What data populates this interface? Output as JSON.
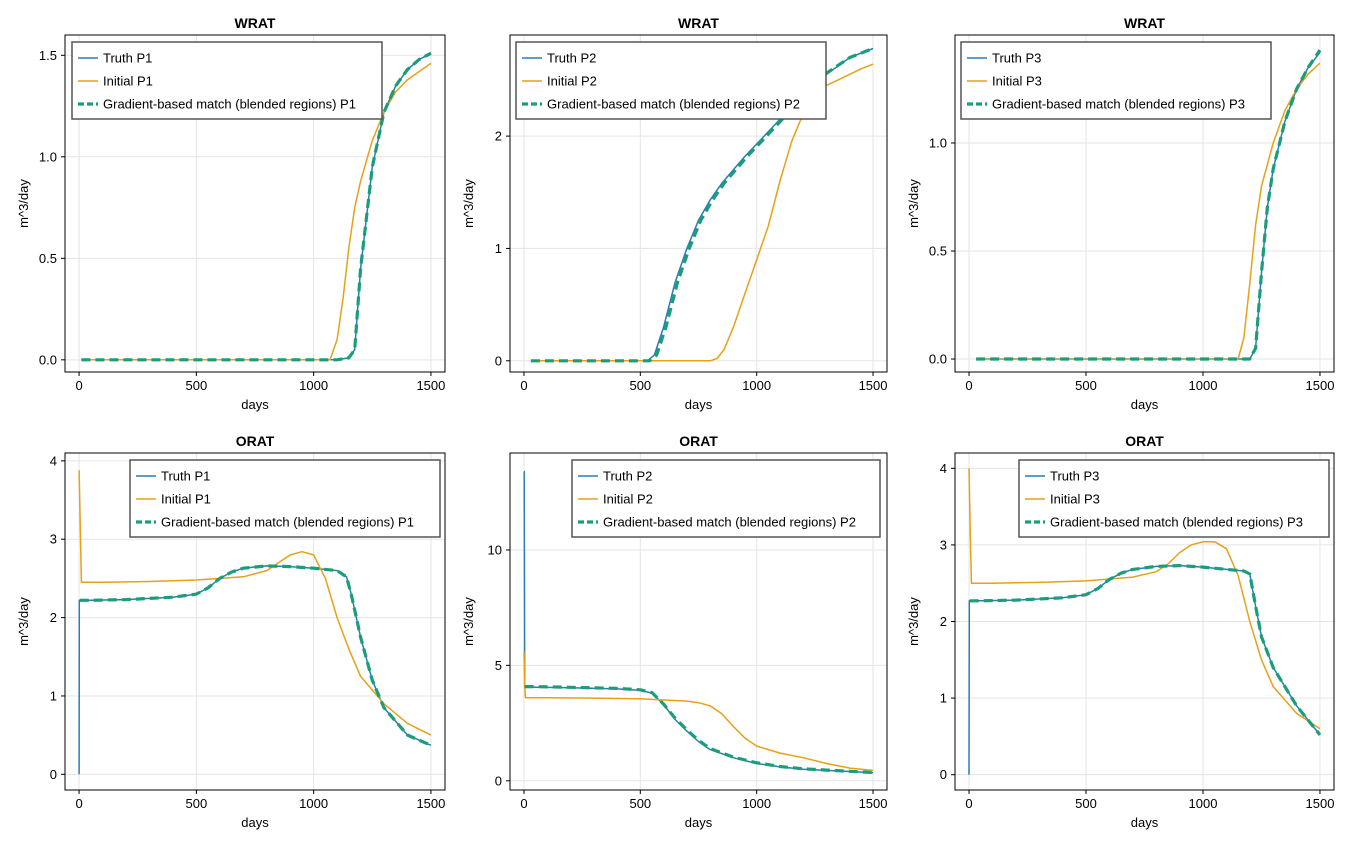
{
  "colors": {
    "truth": "#2b7bba",
    "initial": "#e6a117",
    "match": "#1a9e77",
    "grid": "#e5e5e5",
    "frame": "#000000"
  },
  "chart_data": [
    {
      "type": "line",
      "title": "WRAT",
      "xlabel": "days",
      "ylabel": "m^3/day",
      "xlim": [
        -60,
        1560
      ],
      "ylim": [
        -0.06,
        1.6
      ],
      "xticks": [
        0,
        500,
        1000,
        1500
      ],
      "xtick_labels": [
        "0",
        "500",
        "1000",
        "1500"
      ],
      "yticks": [
        0,
        0.5,
        1.0,
        1.5
      ],
      "ytick_labels": [
        "0.0",
        "0.5",
        "1.0",
        "1.5"
      ],
      "grid": true,
      "legend_position": "top-left",
      "series": [
        {
          "name": "Truth P1",
          "style": "solid",
          "color": "#2b7bba",
          "x": [
            10,
            1100,
            1150,
            1175,
            1200,
            1250,
            1300,
            1350,
            1400,
            1450,
            1500
          ],
          "y": [
            0,
            0,
            0.01,
            0.05,
            0.45,
            0.95,
            1.22,
            1.35,
            1.43,
            1.48,
            1.51
          ]
        },
        {
          "name": "Initial P1",
          "style": "solid",
          "color": "#e6a117",
          "x": [
            10,
            1070,
            1100,
            1125,
            1150,
            1175,
            1200,
            1250,
            1300,
            1350,
            1400,
            1450,
            1500
          ],
          "y": [
            0,
            0,
            0.1,
            0.3,
            0.55,
            0.75,
            0.88,
            1.08,
            1.22,
            1.32,
            1.38,
            1.42,
            1.46
          ]
        },
        {
          "name": "Gradient-based match (blended regions) P1",
          "style": "dashed",
          "color": "#1a9e77",
          "x": [
            10,
            1100,
            1150,
            1175,
            1200,
            1250,
            1300,
            1350,
            1400,
            1450,
            1500
          ],
          "y": [
            0,
            0,
            0.01,
            0.05,
            0.45,
            0.95,
            1.22,
            1.35,
            1.43,
            1.48,
            1.51
          ]
        }
      ]
    },
    {
      "type": "line",
      "title": "WRAT",
      "xlabel": "days",
      "ylabel": "m^3/day",
      "xlim": [
        -60,
        1560
      ],
      "ylim": [
        -0.1,
        2.9
      ],
      "xticks": [
        0,
        500,
        1000,
        1500
      ],
      "xtick_labels": [
        "0",
        "500",
        "1000",
        "1500"
      ],
      "yticks": [
        0,
        1,
        2
      ],
      "ytick_labels": [
        "0",
        "1",
        "2"
      ],
      "grid": true,
      "legend_position": "top-left",
      "series": [
        {
          "name": "Truth P2",
          "style": "solid",
          "color": "#2b7bba",
          "x": [
            30,
            530,
            560,
            600,
            650,
            700,
            750,
            800,
            850,
            900,
            950,
            1000,
            1100,
            1200,
            1300,
            1400,
            1500
          ],
          "y": [
            0,
            0,
            0.05,
            0.3,
            0.7,
            1.0,
            1.25,
            1.43,
            1.58,
            1.7,
            1.82,
            1.93,
            2.15,
            2.35,
            2.55,
            2.7,
            2.78
          ]
        },
        {
          "name": "Initial P2",
          "style": "solid",
          "color": "#e6a117",
          "x": [
            30,
            800,
            830,
            860,
            900,
            950,
            1000,
            1050,
            1100,
            1150,
            1200,
            1250,
            1300,
            1350,
            1400,
            1450,
            1500
          ],
          "y": [
            0,
            0,
            0.02,
            0.1,
            0.3,
            0.6,
            0.9,
            1.2,
            1.6,
            1.95,
            2.2,
            2.35,
            2.45,
            2.5,
            2.55,
            2.6,
            2.64
          ]
        },
        {
          "name": "Gradient-based match (blended regions) P2",
          "style": "dashed",
          "color": "#1a9e77",
          "x": [
            30,
            540,
            570,
            610,
            660,
            710,
            760,
            810,
            860,
            910,
            960,
            1010,
            1110,
            1210,
            1300,
            1400,
            1500
          ],
          "y": [
            0,
            0,
            0.05,
            0.3,
            0.7,
            1.0,
            1.25,
            1.43,
            1.58,
            1.7,
            1.82,
            1.93,
            2.15,
            2.35,
            2.56,
            2.7,
            2.78
          ]
        }
      ]
    },
    {
      "type": "line",
      "title": "WRAT",
      "xlabel": "days",
      "ylabel": "m^3/day",
      "xlim": [
        -60,
        1560
      ],
      "ylim": [
        -0.06,
        1.5
      ],
      "xticks": [
        0,
        500,
        1000,
        1500
      ],
      "xtick_labels": [
        "0",
        "500",
        "1000",
        "1500"
      ],
      "yticks": [
        0,
        0.5,
        1.0
      ],
      "ytick_labels": [
        "0.0",
        "0.5",
        "1.0"
      ],
      "grid": true,
      "legend_position": "top-left",
      "series": [
        {
          "name": "Truth P3",
          "style": "solid",
          "color": "#2b7bba",
          "x": [
            30,
            1200,
            1225,
            1250,
            1275,
            1300,
            1350,
            1400,
            1450,
            1500
          ],
          "y": [
            0,
            0,
            0.05,
            0.4,
            0.7,
            0.88,
            1.1,
            1.25,
            1.35,
            1.42
          ]
        },
        {
          "name": "Initial P3",
          "style": "solid",
          "color": "#e6a117",
          "x": [
            30,
            1150,
            1175,
            1200,
            1225,
            1250,
            1300,
            1350,
            1400,
            1450,
            1500
          ],
          "y": [
            0,
            0,
            0.1,
            0.35,
            0.62,
            0.8,
            1.0,
            1.15,
            1.25,
            1.32,
            1.37
          ]
        },
        {
          "name": "Gradient-based match (blended regions) P3",
          "style": "dashed",
          "color": "#1a9e77",
          "x": [
            30,
            1200,
            1225,
            1250,
            1275,
            1300,
            1350,
            1400,
            1450,
            1500
          ],
          "y": [
            0,
            0,
            0.05,
            0.4,
            0.7,
            0.88,
            1.1,
            1.25,
            1.35,
            1.43
          ]
        }
      ]
    },
    {
      "type": "line",
      "title": "ORAT",
      "xlabel": "days",
      "ylabel": "m^3/day",
      "xlim": [
        -60,
        1560
      ],
      "ylim": [
        -0.2,
        4.1
      ],
      "xticks": [
        0,
        500,
        1000,
        1500
      ],
      "xtick_labels": [
        "0",
        "500",
        "1000",
        "1500"
      ],
      "yticks": [
        0,
        1,
        2,
        3,
        4
      ],
      "ytick_labels": [
        "0",
        "1",
        "2",
        "3",
        "4"
      ],
      "grid": true,
      "legend_position": "top-right",
      "series": [
        {
          "name": "Truth P1",
          "style": "solid",
          "color": "#2b7bba",
          "x": [
            0,
            1,
            50,
            200,
            400,
            500,
            550,
            600,
            650,
            700,
            800,
            900,
            1000,
            1100,
            1140,
            1160,
            1200,
            1250,
            1300,
            1400,
            1500
          ],
          "y": [
            0,
            2.22,
            2.22,
            2.23,
            2.26,
            2.3,
            2.38,
            2.5,
            2.58,
            2.63,
            2.66,
            2.65,
            2.63,
            2.6,
            2.52,
            2.3,
            1.75,
            1.2,
            0.85,
            0.5,
            0.37
          ]
        },
        {
          "name": "Initial P1",
          "style": "solid",
          "color": "#e6a117",
          "x": [
            0,
            5,
            10,
            100,
            300,
            500,
            700,
            800,
            850,
            900,
            950,
            1000,
            1050,
            1100,
            1150,
            1200,
            1300,
            1400,
            1500
          ],
          "y": [
            3.88,
            3.2,
            2.45,
            2.45,
            2.46,
            2.48,
            2.52,
            2.6,
            2.7,
            2.8,
            2.84,
            2.8,
            2.5,
            2.0,
            1.6,
            1.25,
            0.9,
            0.65,
            0.5
          ]
        },
        {
          "name": "Gradient-based match (blended regions) P1",
          "style": "dashed",
          "color": "#1a9e77",
          "x": [
            3,
            50,
            200,
            400,
            500,
            550,
            600,
            650,
            700,
            800,
            900,
            1000,
            1100,
            1140,
            1160,
            1200,
            1250,
            1300,
            1400,
            1500
          ],
          "y": [
            2.22,
            2.22,
            2.23,
            2.26,
            2.3,
            2.38,
            2.5,
            2.58,
            2.63,
            2.66,
            2.65,
            2.63,
            2.6,
            2.52,
            2.3,
            1.75,
            1.2,
            0.85,
            0.5,
            0.37
          ]
        }
      ]
    },
    {
      "type": "line",
      "title": "ORAT",
      "xlabel": "days",
      "ylabel": "m^3/day",
      "xlim": [
        -60,
        1560
      ],
      "ylim": [
        -0.4,
        14.2
      ],
      "xticks": [
        0,
        500,
        1000,
        1500
      ],
      "xtick_labels": [
        "0",
        "500",
        "1000",
        "1500"
      ],
      "yticks": [
        0,
        5,
        10
      ],
      "ytick_labels": [
        "0",
        "5",
        "10"
      ],
      "grid": true,
      "legend_position": "top-right",
      "series": [
        {
          "name": "Truth P2",
          "style": "solid",
          "color": "#2b7bba",
          "x": [
            0,
            1,
            3,
            50,
            200,
            400,
            500,
            550,
            600,
            650,
            700,
            750,
            800,
            900,
            1000,
            1100,
            1200,
            1300,
            1400,
            1500
          ],
          "y": [
            13.4,
            13.4,
            4.05,
            4.05,
            4.03,
            3.98,
            3.92,
            3.8,
            3.3,
            2.65,
            2.15,
            1.7,
            1.35,
            1.0,
            0.75,
            0.6,
            0.5,
            0.45,
            0.4,
            0.35
          ]
        },
        {
          "name": "Initial P2",
          "style": "solid",
          "color": "#e6a117",
          "x": [
            0,
            3,
            6,
            100,
            300,
            500,
            600,
            700,
            750,
            800,
            850,
            900,
            950,
            1000,
            1100,
            1200,
            1300,
            1400,
            1500
          ],
          "y": [
            5.6,
            4.2,
            3.6,
            3.6,
            3.58,
            3.55,
            3.5,
            3.45,
            3.38,
            3.25,
            2.9,
            2.35,
            1.85,
            1.5,
            1.2,
            1.0,
            0.75,
            0.55,
            0.45
          ]
        },
        {
          "name": "Gradient-based match (blended regions) P2",
          "style": "dashed",
          "color": "#1a9e77",
          "x": [
            3,
            50,
            200,
            400,
            500,
            550,
            600,
            650,
            700,
            750,
            800,
            900,
            1000,
            1100,
            1200,
            1300,
            1400,
            1500
          ],
          "y": [
            4.08,
            4.08,
            4.05,
            4.0,
            3.94,
            3.82,
            3.32,
            2.7,
            2.2,
            1.75,
            1.4,
            1.02,
            0.78,
            0.62,
            0.52,
            0.46,
            0.41,
            0.36
          ]
        }
      ]
    },
    {
      "type": "line",
      "title": "ORAT",
      "xlabel": "days",
      "ylabel": "m^3/day",
      "xlim": [
        -60,
        1560
      ],
      "ylim": [
        -0.2,
        4.2
      ],
      "xticks": [
        0,
        500,
        1000,
        1500
      ],
      "xtick_labels": [
        "0",
        "500",
        "1000",
        "1500"
      ],
      "yticks": [
        0,
        1,
        2,
        3,
        4
      ],
      "ytick_labels": [
        "0",
        "1",
        "2",
        "3",
        "4"
      ],
      "grid": true,
      "legend_position": "top-right",
      "series": [
        {
          "name": "Truth P3",
          "style": "solid",
          "color": "#2b7bba",
          "x": [
            0,
            1,
            50,
            200,
            400,
            500,
            550,
            600,
            650,
            700,
            800,
            900,
            1000,
            1100,
            1175,
            1200,
            1225,
            1250,
            1300,
            1400,
            1500
          ],
          "y": [
            0,
            2.27,
            2.27,
            2.28,
            2.31,
            2.35,
            2.43,
            2.55,
            2.63,
            2.68,
            2.72,
            2.73,
            2.71,
            2.68,
            2.66,
            2.62,
            2.2,
            1.8,
            1.4,
            0.9,
            0.52
          ]
        },
        {
          "name": "Initial P3",
          "style": "solid",
          "color": "#e6a117",
          "x": [
            0,
            5,
            10,
            100,
            300,
            500,
            700,
            800,
            850,
            900,
            950,
            1000,
            1050,
            1100,
            1150,
            1200,
            1250,
            1300,
            1400,
            1500
          ],
          "y": [
            4.0,
            3.2,
            2.5,
            2.5,
            2.51,
            2.53,
            2.58,
            2.65,
            2.75,
            2.9,
            3.0,
            3.04,
            3.04,
            2.95,
            2.6,
            2.0,
            1.5,
            1.15,
            0.8,
            0.6
          ]
        },
        {
          "name": "Gradient-based match (blended regions) P3",
          "style": "dashed",
          "color": "#1a9e77",
          "x": [
            3,
            50,
            200,
            400,
            500,
            550,
            600,
            650,
            700,
            800,
            900,
            1000,
            1100,
            1175,
            1200,
            1225,
            1250,
            1300,
            1400,
            1500
          ],
          "y": [
            2.27,
            2.27,
            2.28,
            2.31,
            2.35,
            2.43,
            2.55,
            2.63,
            2.68,
            2.72,
            2.73,
            2.71,
            2.68,
            2.66,
            2.62,
            2.2,
            1.8,
            1.4,
            0.9,
            0.52
          ]
        }
      ]
    }
  ]
}
